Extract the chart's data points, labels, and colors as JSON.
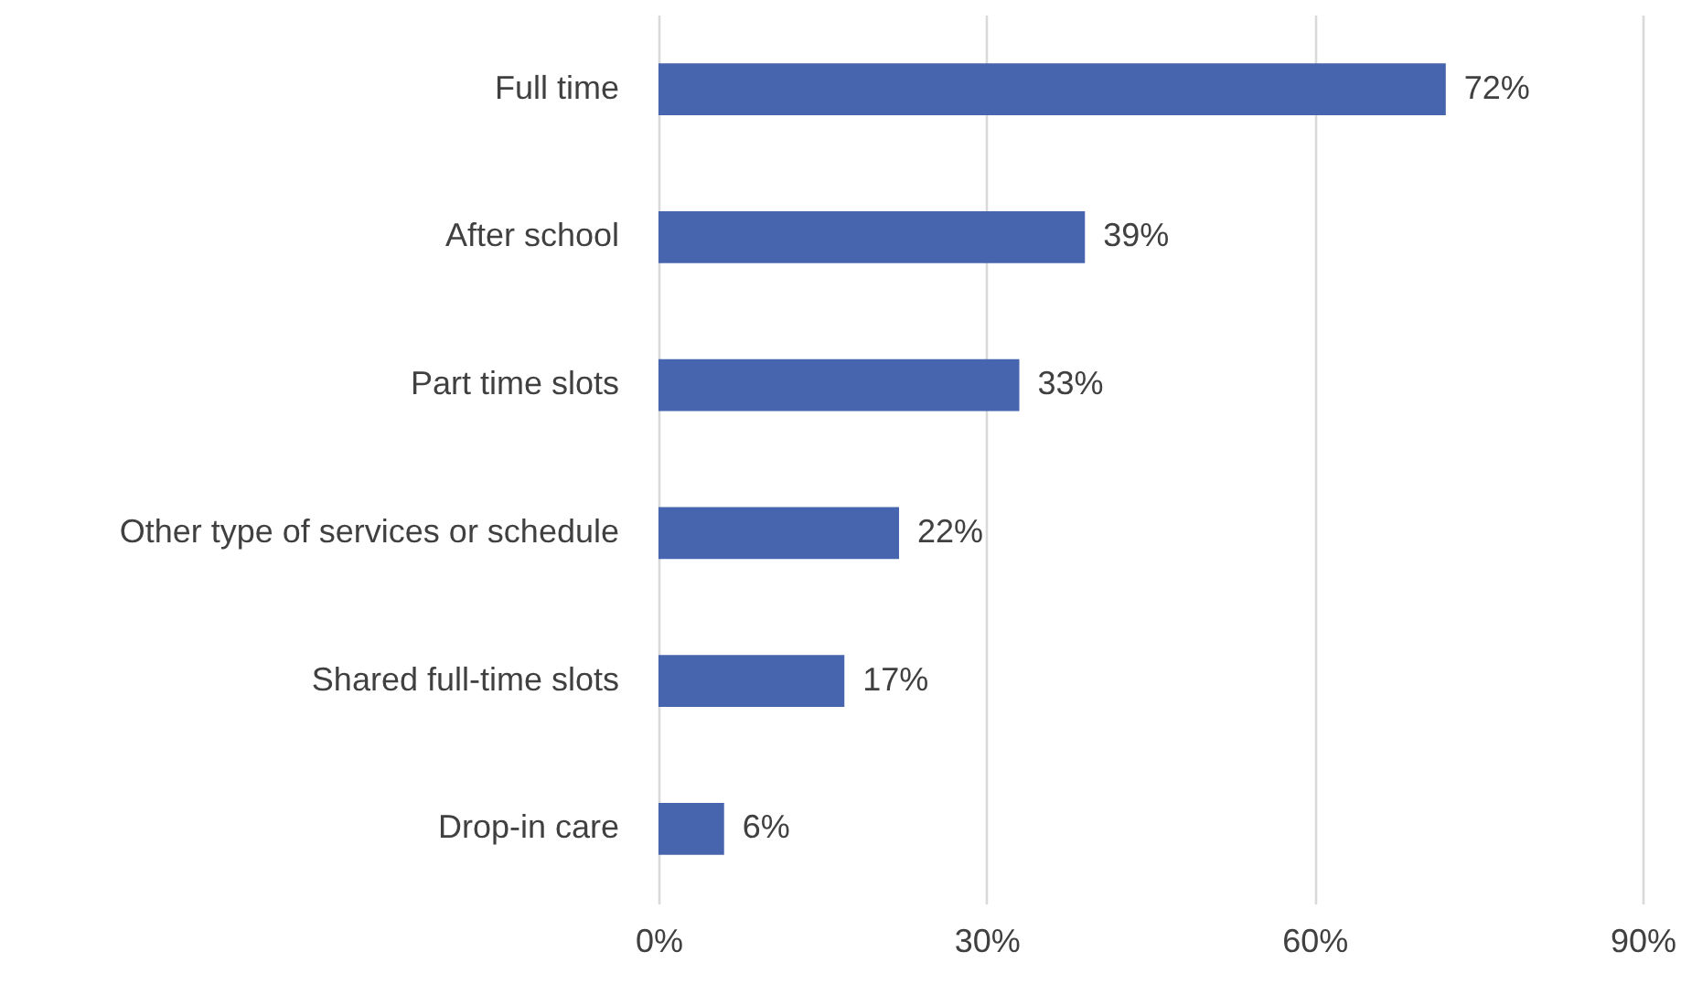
{
  "chart_data": {
    "type": "bar",
    "orientation": "horizontal",
    "categories": [
      "Full time",
      "After school",
      "Part time slots",
      "Other type of services or schedule",
      "Shared full-time slots",
      "Drop-in care"
    ],
    "values": [
      72,
      39,
      33,
      22,
      17,
      6
    ],
    "value_labels": [
      "72%",
      "39%",
      "33%",
      "22%",
      "17%",
      "6%"
    ],
    "color": "#4764ae",
    "xlim": [
      0,
      90
    ],
    "xticks": [
      {
        "value": 0,
        "label": "0%"
      },
      {
        "value": 30,
        "label": "30%"
      },
      {
        "value": 60,
        "label": "60%"
      },
      {
        "value": 90,
        "label": "90%"
      }
    ],
    "grid": "x"
  }
}
